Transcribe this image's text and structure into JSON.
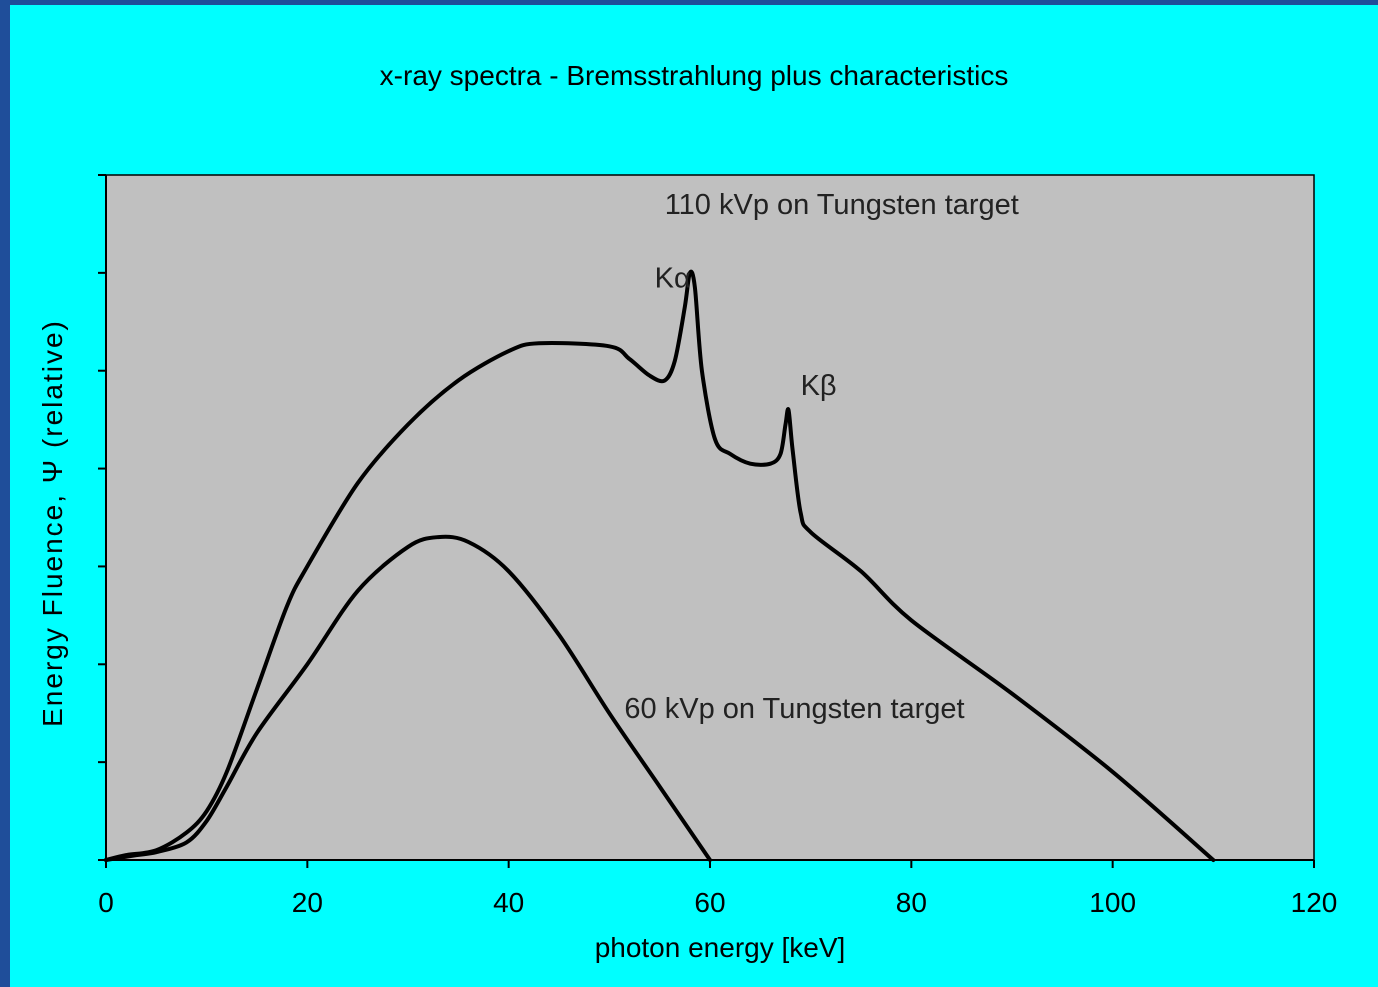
{
  "colors": {
    "slide_background": "#00ffff",
    "frame_background": "#1f4e9a",
    "plot_area": "#c0c0c0",
    "curve": "#000000"
  },
  "chart_data": {
    "type": "line",
    "title": "x-ray spectra - Bremsstrahlung plus characteristics",
    "xlabel": "photon energy [keV]",
    "ylabel": "Energy Fluence, Ψ (relative)",
    "xlim": [
      0,
      120
    ],
    "ylim": [
      0,
      7
    ],
    "x_ticks": [
      "0",
      "20",
      "40",
      "60",
      "80",
      "100",
      "120"
    ],
    "y_ticks": [
      0,
      1,
      2,
      3,
      4,
      5,
      6,
      7
    ],
    "grid": false,
    "legend": "none",
    "series": [
      {
        "label": "110 kVp  on Tungsten target",
        "x": [
          0,
          2,
          5,
          8,
          10,
          12,
          15,
          18,
          20,
          25,
          30,
          35,
          40,
          43,
          50,
          52,
          54,
          55.5,
          56.5,
          57.5,
          58,
          58.5,
          59.2,
          60.5,
          62,
          64,
          66,
          67,
          67.5,
          67.8,
          68.2,
          69,
          70,
          75,
          80,
          90,
          100,
          110
        ],
        "y": [
          0,
          0.05,
          0.1,
          0.28,
          0.5,
          0.9,
          1.75,
          2.6,
          3.0,
          3.85,
          4.45,
          4.9,
          5.2,
          5.28,
          5.25,
          5.12,
          4.95,
          4.9,
          5.1,
          5.65,
          6.0,
          5.85,
          5.0,
          4.3,
          4.15,
          4.05,
          4.05,
          4.15,
          4.45,
          4.6,
          4.2,
          3.55,
          3.35,
          2.95,
          2.45,
          1.7,
          0.9,
          0.0
        ]
      },
      {
        "label": "60 kVp on Tungsten target",
        "x": [
          0,
          3,
          5,
          8,
          10,
          12,
          15,
          20,
          25,
          30,
          33,
          36,
          40,
          45,
          50,
          55,
          60
        ],
        "y": [
          0,
          0.05,
          0.08,
          0.18,
          0.4,
          0.75,
          1.3,
          2.0,
          2.75,
          3.2,
          3.3,
          3.25,
          2.95,
          2.3,
          1.5,
          0.75,
          0.0
        ]
      }
    ],
    "annotations": [
      {
        "text": "Kα",
        "x": 54.5,
        "y": 5.85
      },
      {
        "text": "Kβ",
        "x": 69,
        "y": 4.75
      }
    ]
  }
}
